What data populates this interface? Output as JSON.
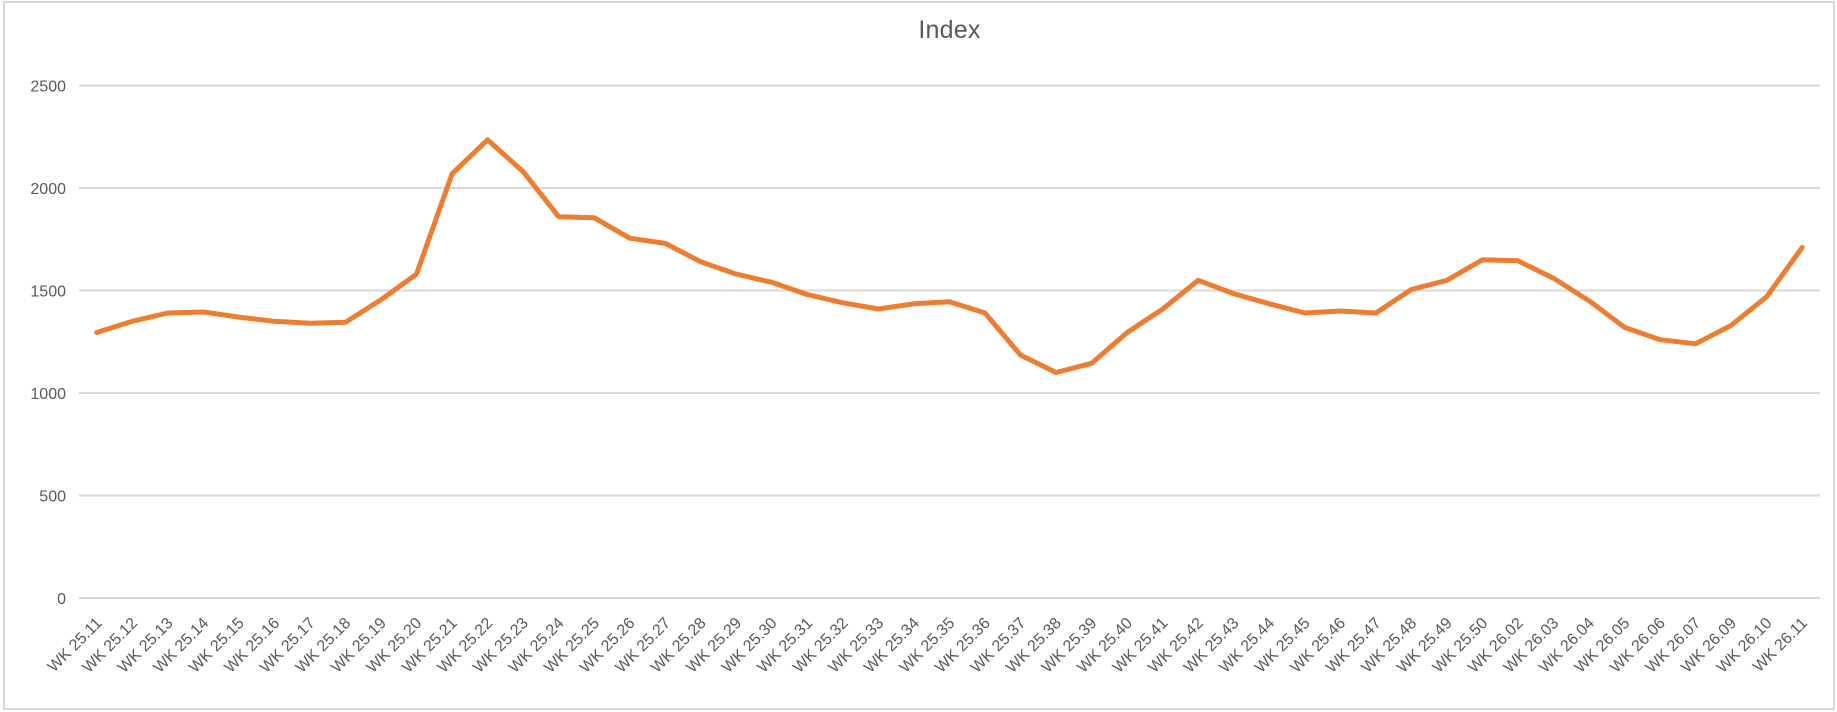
{
  "chart_data": {
    "type": "line",
    "title": "Index",
    "xlabel": "",
    "ylabel": "",
    "ylim": [
      0,
      2500
    ],
    "yticks": [
      0,
      500,
      1000,
      1500,
      2000,
      2500
    ],
    "grid": true,
    "legend": "none",
    "x_label_rotation": -45,
    "categories": [
      "WK 25.11",
      "WK 25.12",
      "WK 25.13",
      "WK 25.14",
      "WK 25.15",
      "WK 25.16",
      "WK 25.17",
      "WK 25.18",
      "WK 25.19",
      "WK 25.20",
      "WK 25.21",
      "WK 25.22",
      "WK 25.23",
      "WK 25.24",
      "WK 25.25",
      "WK 25.26",
      "WK 25.27",
      "WK 25.28",
      "WK 25.29",
      "WK 25.30",
      "WK 25.31",
      "WK 25.32",
      "WK 25.33",
      "WK 25.34",
      "WK 25.35",
      "WK 25.36",
      "WK 25.37",
      "WK 25.38",
      "WK 25.39",
      "WK 25.40",
      "WK 25.41",
      "WK 25.42",
      "WK 25.43",
      "WK 25.44",
      "WK 25.45",
      "WK 25.46",
      "WK 25.47",
      "WK 25.48",
      "WK 25.49",
      "WK 25.50",
      "WK 26.02",
      "WK 26.03",
      "WK 26.04",
      "WK 26.05",
      "WK 26.06",
      "WK 26.07",
      "WK 26.09",
      "WK 26.10",
      "WK 26.11"
    ],
    "series": [
      {
        "name": "Index",
        "values": [
          1295,
          1350,
          1390,
          1395,
          1370,
          1350,
          1340,
          1345,
          1455,
          1580,
          2070,
          2235,
          2080,
          1860,
          1855,
          1755,
          1730,
          1640,
          1580,
          1540,
          1480,
          1440,
          1410,
          1435,
          1445,
          1390,
          1185,
          1100,
          1145,
          1295,
          1410,
          1550,
          1485,
          1435,
          1390,
          1400,
          1390,
          1505,
          1550,
          1650,
          1645,
          1560,
          1450,
          1320,
          1260,
          1240,
          1330,
          1470,
          1710
        ]
      }
    ]
  },
  "colors": {
    "series_line": "#ED7D31",
    "gridline": "#D9D9D9",
    "axis_text": "#595959",
    "title_text": "#595959",
    "frame_border": "#D9D9D9",
    "background": "#FFFFFF"
  }
}
